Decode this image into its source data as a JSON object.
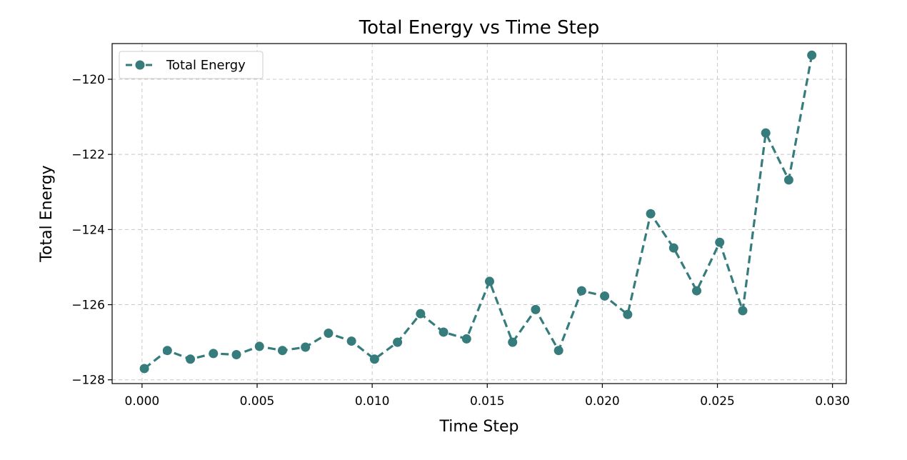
{
  "chart_data": {
    "type": "line",
    "title": "Total Energy vs Time Step",
    "xlabel": "Time Step",
    "ylabel": "Total Energy",
    "xlim": [
      -0.0013,
      0.0306
    ],
    "ylim": [
      -128.1,
      -119.05
    ],
    "x_ticks": [
      0.0,
      0.005,
      0.01,
      0.015,
      0.02,
      0.025,
      0.03
    ],
    "x_tick_labels": [
      "0.000",
      "0.005",
      "0.010",
      "0.015",
      "0.020",
      "0.025",
      "0.030"
    ],
    "y_ticks": [
      -128,
      -126,
      -124,
      -122,
      -120
    ],
    "y_tick_labels": [
      "−128",
      "−126",
      "−124",
      "−122",
      "−120"
    ],
    "grid": true,
    "legend_position": "top-left",
    "series": [
      {
        "name": "Total Energy",
        "color": "#367c7c",
        "line_style": "dashed",
        "marker": "circle",
        "x": [
          0.0001,
          0.0011,
          0.0021,
          0.0031,
          0.0041,
          0.0051,
          0.0061,
          0.0071,
          0.0081,
          0.0091,
          0.0101,
          0.0111,
          0.0121,
          0.0131,
          0.0141,
          0.0151,
          0.0161,
          0.0171,
          0.0181,
          0.0191,
          0.0201,
          0.0211,
          0.0221,
          0.0231,
          0.0241,
          0.0251,
          0.0261,
          0.0271,
          0.0281,
          0.0291
        ],
        "y": [
          -127.7,
          -127.22,
          -127.45,
          -127.3,
          -127.33,
          -127.11,
          -127.22,
          -127.13,
          -126.76,
          -126.97,
          -127.45,
          -127.0,
          -126.24,
          -126.73,
          -126.91,
          -125.38,
          -127.0,
          -126.13,
          -127.22,
          -125.63,
          -125.77,
          -126.26,
          -123.58,
          -124.49,
          -125.63,
          -124.34,
          -126.16,
          -121.43,
          -122.68,
          -119.36
        ]
      }
    ]
  }
}
